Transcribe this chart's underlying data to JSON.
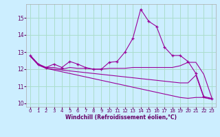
{
  "background_color": "#cceeff",
  "line_color": "#990099",
  "grid_color": "#aaddcc",
  "xlabel": "Windchill (Refroidissement éolien,°C)",
  "xlabel_color": "#660066",
  "tick_color": "#660066",
  "xlim": [
    -0.5,
    23.5
  ],
  "ylim": [
    9.8,
    15.8
  ],
  "yticks": [
    10,
    11,
    12,
    13,
    14,
    15
  ],
  "xticks": [
    0,
    1,
    2,
    3,
    4,
    5,
    6,
    7,
    8,
    9,
    10,
    11,
    12,
    13,
    14,
    15,
    16,
    17,
    18,
    19,
    20,
    21,
    22,
    23
  ],
  "series": [
    {
      "x": [
        0,
        1,
        2,
        3,
        4,
        5,
        6,
        7,
        8,
        9,
        10,
        11,
        12,
        13,
        14,
        15,
        16,
        17,
        18,
        19,
        20,
        21,
        22,
        23
      ],
      "y": [
        12.8,
        12.3,
        12.1,
        12.3,
        12.1,
        12.45,
        12.3,
        12.1,
        12.0,
        12.0,
        12.4,
        12.45,
        13.0,
        13.8,
        15.5,
        14.8,
        14.5,
        13.3,
        12.8,
        12.8,
        12.45,
        11.75,
        10.4,
        10.3
      ],
      "marker": "+"
    },
    {
      "x": [
        0,
        1,
        2,
        3,
        4,
        5,
        6,
        7,
        8,
        9,
        10,
        11,
        12,
        13,
        14,
        15,
        16,
        17,
        18,
        19,
        20,
        21,
        22,
        23
      ],
      "y": [
        12.8,
        12.3,
        12.1,
        12.1,
        12.0,
        12.1,
        12.05,
        12.05,
        12.0,
        12.0,
        12.05,
        12.05,
        12.05,
        12.1,
        12.1,
        12.1,
        12.1,
        12.1,
        12.1,
        12.2,
        12.4,
        12.4,
        11.7,
        10.35
      ],
      "marker": null
    },
    {
      "x": [
        0,
        1,
        2,
        3,
        4,
        5,
        6,
        7,
        8,
        9,
        10,
        11,
        12,
        13,
        14,
        15,
        16,
        17,
        18,
        19,
        20,
        21,
        22,
        23
      ],
      "y": [
        12.75,
        12.25,
        12.05,
        12.0,
        11.95,
        11.9,
        11.85,
        11.8,
        11.75,
        11.7,
        11.65,
        11.6,
        11.55,
        11.5,
        11.45,
        11.4,
        11.35,
        11.3,
        11.25,
        11.2,
        11.2,
        11.65,
        10.35,
        10.25
      ],
      "marker": null
    },
    {
      "x": [
        0,
        1,
        2,
        3,
        4,
        5,
        6,
        7,
        8,
        9,
        10,
        11,
        12,
        13,
        14,
        15,
        16,
        17,
        18,
        19,
        20,
        21,
        22,
        23
      ],
      "y": [
        12.75,
        12.25,
        12.05,
        11.95,
        11.85,
        11.75,
        11.65,
        11.55,
        11.45,
        11.35,
        11.25,
        11.15,
        11.05,
        10.95,
        10.85,
        10.75,
        10.65,
        10.55,
        10.45,
        10.35,
        10.3,
        10.35,
        10.35,
        10.25
      ],
      "marker": null
    }
  ]
}
